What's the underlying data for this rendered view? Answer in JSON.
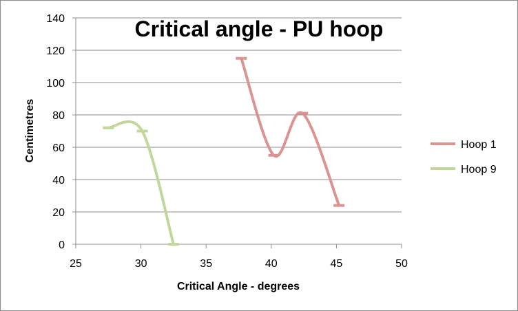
{
  "chart_data": {
    "type": "line",
    "title": "Critical angle - PU hoop",
    "xlabel": "Critical Angle - degrees",
    "ylabel": "Centimetres",
    "xlim": [
      25,
      50
    ],
    "ylim": [
      0,
      140
    ],
    "xticks": [
      25,
      30,
      35,
      40,
      45,
      50
    ],
    "yticks": [
      0,
      20,
      40,
      60,
      80,
      100,
      120,
      140
    ],
    "grid": true,
    "legend_position": "right",
    "smooth": true,
    "series": [
      {
        "name": "Hoop 1",
        "color": "#d99594",
        "x": [
          37.7,
          40.2,
          42.4,
          45.2
        ],
        "y": [
          115,
          55,
          81,
          24
        ]
      },
      {
        "name": "Hoop 9",
        "color": "#c3d69b",
        "x": [
          27.5,
          30.1,
          32.5
        ],
        "y": [
          72,
          70,
          0
        ]
      }
    ]
  }
}
